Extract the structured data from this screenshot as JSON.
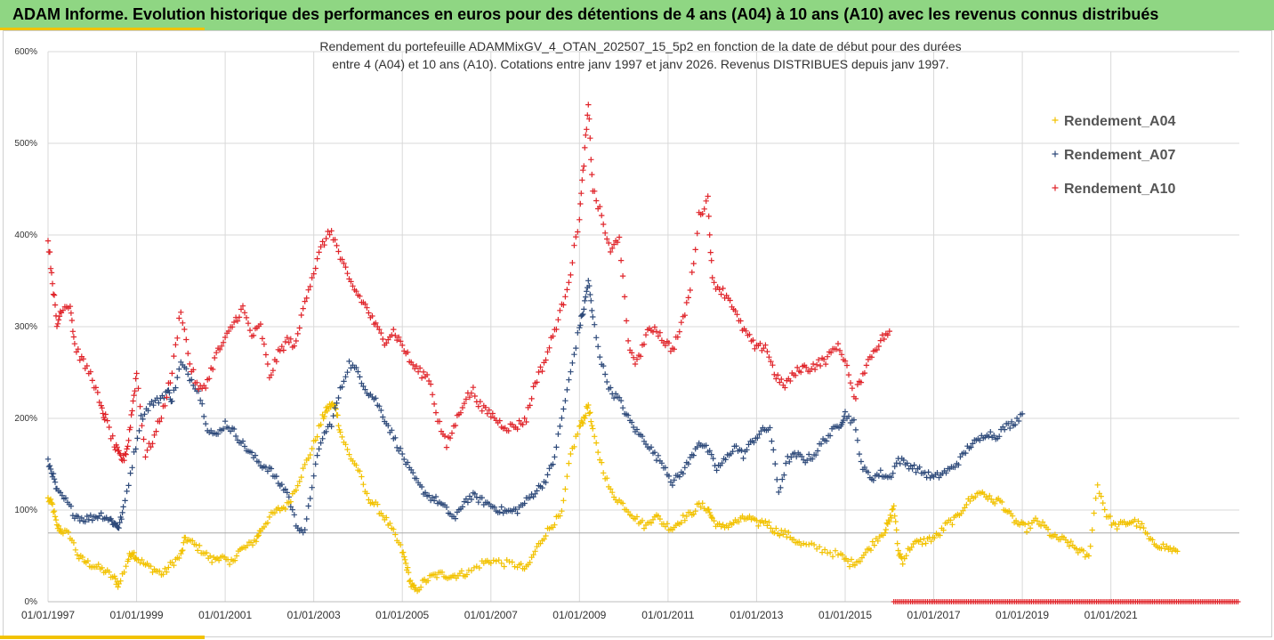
{
  "page": {
    "banner_title": "ADAM Informe. Evolution historique des performances en euros pour des détentions de 4 ans (A04) à 10 ans (A10) avec les revenus connus distribués"
  },
  "chart_data": {
    "type": "scatter",
    "title": "",
    "subtitle_lines": [
      "Rendement du portefeuille ADAMMixGV_4_OTAN_202507_15_5p2  en fonction de la date de début pour des durées",
      "entre 4 (A04) et 10 ans (A10). Cotations entre janv 1997 et janv 2026. Revenus DISTRIBUES depuis janv 1997."
    ],
    "xlabel": "",
    "ylabel": "",
    "ylim": [
      0,
      6
    ],
    "yticks": [
      0,
      1,
      2,
      3,
      4,
      5,
      6
    ],
    "ytick_labels": [
      "0%",
      "100%",
      "200%",
      "300%",
      "400%",
      "500%",
      "600%"
    ],
    "xlim": [
      1997.0,
      2023.9
    ],
    "xticks": [
      1997,
      1999,
      2001,
      2003,
      2005,
      2007,
      2009,
      2011,
      2013,
      2015,
      2017,
      2019,
      2021
    ],
    "xtick_labels": [
      "01/01/1997",
      "01/01/1999",
      "01/01/2001",
      "01/01/2003",
      "01/01/2005",
      "01/01/2007",
      "01/01/2009",
      "01/01/2011",
      "01/01/2013",
      "01/01/2015",
      "01/01/2017",
      "01/01/2019",
      "01/01/2021"
    ],
    "grid": true,
    "legend_position": "top-right",
    "series": [
      {
        "name": "Rendement_A04",
        "color": "#f2c200",
        "marker": "plus",
        "x": [
          1997.0,
          1997.1,
          1997.2,
          1997.3,
          1997.5,
          1997.7,
          1997.9,
          1998.1,
          1998.3,
          1998.5,
          1998.6,
          1998.8,
          1998.9,
          1999.0,
          1999.2,
          1999.4,
          1999.6,
          1999.8,
          2000.0,
          2000.1,
          2000.3,
          2000.5,
          2000.7,
          2000.9,
          2001.1,
          2001.3,
          2001.5,
          2001.7,
          2001.8,
          2002.0,
          2002.2,
          2002.4,
          2002.6,
          2002.8,
          2003.0,
          2003.2,
          2003.3,
          2003.4,
          2003.5,
          2003.6,
          2003.8,
          2004.0,
          2004.2,
          2004.4,
          2004.6,
          2004.8,
          2005.0,
          2005.1,
          2005.2,
          2005.3,
          2005.5,
          2005.7,
          2005.9,
          2006.1,
          2006.3,
          2006.5,
          2006.8,
          2007.0,
          2007.3,
          2007.6,
          2007.8,
          2008.0,
          2008.2,
          2008.4,
          2008.6,
          2008.8,
          2009.0,
          2009.1,
          2009.2,
          2009.3,
          2009.5,
          2009.7,
          2009.9,
          2010.1,
          2010.3,
          2010.5,
          2010.7,
          2010.9,
          2011.1,
          2011.3,
          2011.5,
          2011.7,
          2011.9,
          2012.0,
          2012.2,
          2012.4,
          2012.6,
          2012.8,
          2013.0,
          2013.2,
          2013.4,
          2013.6,
          2013.8,
          2014.0,
          2014.3,
          2014.6,
          2014.9,
          2015.1,
          2015.3,
          2015.5,
          2015.7,
          2015.9,
          2016.0,
          2016.1,
          2016.2,
          2016.3,
          2016.5,
          2016.7,
          2016.9,
          2017.1,
          2017.3,
          2017.5,
          2017.7,
          2017.9,
          2018.1,
          2018.3,
          2018.5,
          2018.7,
          2018.9,
          2019.1,
          2019.3,
          2019.5,
          2019.7,
          2019.9,
          2020.1,
          2020.3,
          2020.5,
          2020.7,
          2020.9,
          2021.1,
          2021.3,
          2021.5,
          2021.7,
          2021.9,
          2022.1,
          2022.3,
          2022.5
        ],
        "y": [
          1.12,
          1.05,
          0.82,
          0.78,
          0.72,
          0.48,
          0.42,
          0.38,
          0.33,
          0.25,
          0.18,
          0.45,
          0.55,
          0.48,
          0.4,
          0.35,
          0.3,
          0.42,
          0.5,
          0.7,
          0.62,
          0.55,
          0.45,
          0.5,
          0.4,
          0.55,
          0.6,
          0.68,
          0.78,
          0.92,
          1.0,
          1.05,
          1.25,
          1.48,
          1.72,
          2.0,
          2.1,
          2.15,
          2.12,
          1.85,
          1.6,
          1.45,
          1.15,
          1.05,
          0.92,
          0.75,
          0.55,
          0.38,
          0.18,
          0.12,
          0.22,
          0.28,
          0.3,
          0.28,
          0.3,
          0.32,
          0.42,
          0.45,
          0.42,
          0.4,
          0.35,
          0.55,
          0.72,
          0.85,
          0.95,
          1.6,
          1.9,
          2.0,
          2.15,
          1.85,
          1.5,
          1.2,
          1.1,
          1.0,
          0.9,
          0.82,
          0.95,
          0.85,
          0.8,
          0.9,
          0.95,
          1.05,
          1.02,
          0.9,
          0.8,
          0.85,
          0.88,
          0.92,
          0.85,
          0.88,
          0.78,
          0.75,
          0.7,
          0.62,
          0.6,
          0.55,
          0.5,
          0.42,
          0.45,
          0.55,
          0.68,
          0.78,
          0.88,
          1.05,
          0.55,
          0.45,
          0.62,
          0.65,
          0.68,
          0.72,
          0.85,
          0.9,
          1.05,
          1.15,
          1.2,
          1.1,
          1.1,
          0.95,
          0.85,
          0.8,
          0.88,
          0.82,
          0.7,
          0.68,
          0.62,
          0.55,
          0.48,
          1.28,
          0.95,
          0.82,
          0.85,
          0.88,
          0.82,
          0.65,
          0.62,
          0.58,
          0.55
        ],
        "noise": 0.04
      },
      {
        "name": "Rendement_A07",
        "color": "#2e4a7a",
        "marker": "plus",
        "x": [
          1997.0,
          1997.1,
          1997.2,
          1997.4,
          1997.6,
          1997.8,
          1998.0,
          1998.2,
          1998.4,
          1998.5,
          1998.6,
          1998.7,
          1998.9,
          1999.1,
          1999.3,
          1999.5,
          1999.7,
          1999.8,
          2000.0,
          2000.2,
          2000.4,
          2000.6,
          2000.8,
          2001.0,
          2001.2,
          2001.4,
          2001.6,
          2001.8,
          2002.0,
          2002.2,
          2002.4,
          2002.6,
          2002.8,
          2003.0,
          2003.2,
          2003.4,
          2003.6,
          2003.8,
          2004.0,
          2004.2,
          2004.4,
          2004.6,
          2004.8,
          2005.0,
          2005.2,
          2005.4,
          2005.6,
          2005.8,
          2006.0,
          2006.2,
          2006.4,
          2006.6,
          2006.8,
          2007.0,
          2007.2,
          2007.4,
          2007.6,
          2007.8,
          2008.0,
          2008.2,
          2008.4,
          2008.6,
          2008.8,
          2009.0,
          2009.1,
          2009.2,
          2009.3,
          2009.5,
          2009.7,
          2009.9,
          2010.1,
          2010.3,
          2010.5,
          2010.7,
          2010.9,
          2011.1,
          2011.3,
          2011.5,
          2011.7,
          2011.9,
          2012.1,
          2012.3,
          2012.5,
          2012.7,
          2012.9,
          2013.1,
          2013.3,
          2013.5,
          2013.7,
          2013.9,
          2014.1,
          2014.3,
          2014.5,
          2014.7,
          2014.9,
          2015.0,
          2015.2,
          2015.4,
          2015.6,
          2015.8,
          2016.0,
          2016.2,
          2016.4,
          2016.6,
          2016.8,
          2017.0,
          2017.2,
          2017.4,
          2017.6,
          2017.8,
          2018.0,
          2018.2,
          2018.4,
          2018.6,
          2018.8,
          2019.0
        ],
        "y": [
          1.52,
          1.4,
          1.2,
          1.1,
          0.95,
          0.9,
          0.92,
          0.95,
          0.9,
          0.85,
          0.82,
          1.0,
          1.5,
          2.0,
          2.15,
          2.2,
          2.3,
          2.2,
          2.6,
          2.45,
          2.3,
          1.9,
          1.8,
          1.95,
          1.85,
          1.72,
          1.6,
          1.5,
          1.45,
          1.3,
          1.2,
          0.85,
          0.75,
          1.4,
          1.8,
          1.95,
          2.3,
          2.6,
          2.5,
          2.3,
          2.2,
          2.0,
          1.8,
          1.6,
          1.4,
          1.25,
          1.15,
          1.1,
          1.0,
          0.9,
          1.1,
          1.15,
          1.1,
          1.05,
          1.0,
          0.98,
          1.0,
          1.1,
          1.2,
          1.3,
          1.5,
          2.0,
          2.5,
          3.0,
          3.2,
          3.5,
          3.1,
          2.6,
          2.3,
          2.2,
          2.0,
          1.85,
          1.75,
          1.6,
          1.5,
          1.3,
          1.4,
          1.55,
          1.75,
          1.65,
          1.45,
          1.55,
          1.7,
          1.6,
          1.75,
          1.85,
          1.9,
          1.2,
          1.55,
          1.6,
          1.55,
          1.6,
          1.75,
          1.85,
          1.95,
          2.05,
          1.95,
          1.45,
          1.35,
          1.4,
          1.35,
          1.55,
          1.5,
          1.45,
          1.4,
          1.35,
          1.4,
          1.45,
          1.55,
          1.7,
          1.75,
          1.85,
          1.8,
          1.9,
          1.95,
          2.05
        ],
        "noise": 0.04
      },
      {
        "name": "Rendement_A10",
        "color": "#e0242a",
        "marker": "plus",
        "x": [
          1997.0,
          1997.1,
          1997.2,
          1997.3,
          1997.5,
          1997.6,
          1997.8,
          1998.0,
          1998.2,
          1998.3,
          1998.5,
          1998.6,
          1998.7,
          1998.8,
          1998.9,
          1999.0,
          1999.2,
          1999.4,
          1999.6,
          1999.8,
          2000.0,
          2000.2,
          2000.4,
          2000.6,
          2000.8,
          2001.0,
          2001.2,
          2001.4,
          2001.6,
          2001.8,
          2002.0,
          2002.2,
          2002.4,
          2002.6,
          2002.8,
          2003.0,
          2003.2,
          2003.4,
          2003.6,
          2003.8,
          2004.0,
          2004.2,
          2004.4,
          2004.6,
          2004.8,
          2005.0,
          2005.2,
          2005.4,
          2005.6,
          2005.8,
          2006.0,
          2006.2,
          2006.4,
          2006.6,
          2006.8,
          2007.0,
          2007.2,
          2007.4,
          2007.6,
          2007.8,
          2008.0,
          2008.2,
          2008.4,
          2008.6,
          2008.8,
          2009.0,
          2009.1,
          2009.2,
          2009.3,
          2009.5,
          2009.7,
          2009.9,
          2010.1,
          2010.3,
          2010.5,
          2010.7,
          2010.9,
          2011.1,
          2011.3,
          2011.5,
          2011.7,
          2011.9,
          2012.0,
          2012.2,
          2012.4,
          2012.6,
          2012.8,
          2013.0,
          2013.2,
          2013.4,
          2013.6,
          2013.8,
          2014.0,
          2014.2,
          2014.4,
          2014.6,
          2014.8,
          2015.0,
          2015.2,
          2015.4,
          2015.6,
          2015.8,
          2016.0
        ],
        "y": [
          3.95,
          3.5,
          3.0,
          3.2,
          3.25,
          2.8,
          2.6,
          2.45,
          2.1,
          2.0,
          1.7,
          1.6,
          1.55,
          1.7,
          2.1,
          2.5,
          1.6,
          1.8,
          2.1,
          2.5,
          3.2,
          2.6,
          2.3,
          2.4,
          2.7,
          2.85,
          3.05,
          3.2,
          2.9,
          3.0,
          2.45,
          2.7,
          2.85,
          2.8,
          3.3,
          3.6,
          3.9,
          4.05,
          3.75,
          3.5,
          3.35,
          3.2,
          3.0,
          2.85,
          2.95,
          2.8,
          2.6,
          2.5,
          2.45,
          2.0,
          1.7,
          1.95,
          2.2,
          2.3,
          2.1,
          2.05,
          1.95,
          1.9,
          1.92,
          2.0,
          2.4,
          2.6,
          2.9,
          3.2,
          3.6,
          4.2,
          4.8,
          5.4,
          4.5,
          4.2,
          3.8,
          4.0,
          2.8,
          2.6,
          2.9,
          3.0,
          2.85,
          2.75,
          3.0,
          3.4,
          4.2,
          4.4,
          3.5,
          3.4,
          3.3,
          3.05,
          2.9,
          2.75,
          2.8,
          2.5,
          2.35,
          2.45,
          2.55,
          2.55,
          2.6,
          2.65,
          2.8,
          2.65,
          2.2,
          2.5,
          2.7,
          2.85,
          2.95
        ],
        "noise": 0.05
      },
      {
        "name": "Rendement_A10",
        "color": "#e0242a",
        "marker": "plus",
        "x": [
          2016.1,
          2023.9
        ],
        "y": [
          0.0,
          0.0
        ],
        "noise": 0,
        "dense": true
      }
    ]
  }
}
